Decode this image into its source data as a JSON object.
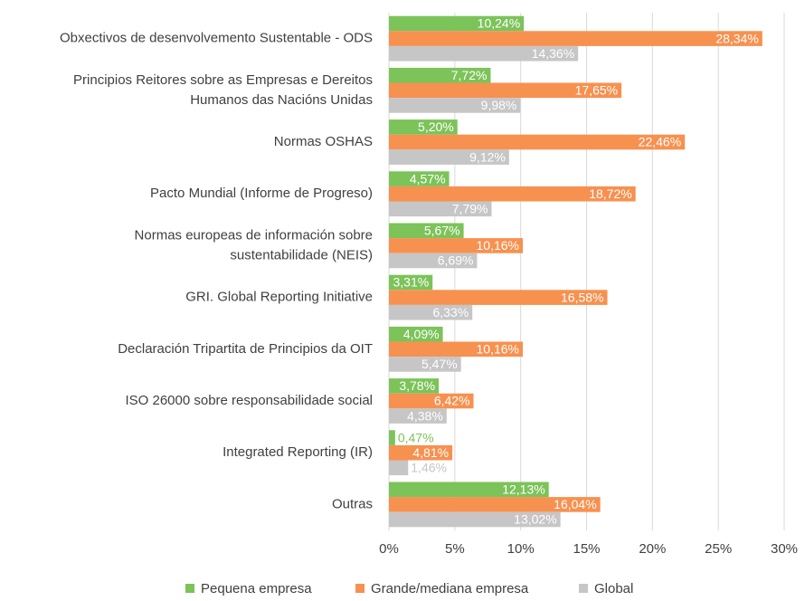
{
  "chart_data": {
    "type": "bar",
    "orientation": "horizontal",
    "categories": [
      "Obxectivos de desenvolvemento Sustentable - ODS",
      "Principios Reitores sobre as Empresas e Dereitos\nHumanos das Nacións Unidas",
      "Normas OSHAS",
      "Pacto Mundial (Informe de Progreso)",
      "Normas europeas de información sobre\nsustentabilidade (NEIS)",
      "GRI. Global Reporting Initiative",
      "Declaración Tripartita de Principios da OIT",
      "ISO 26000 sobre responsabilidade social",
      "Integrated Reporting (IR)",
      "Outras"
    ],
    "series": [
      {
        "name": "Pequena empresa",
        "color": "#7cc35a",
        "values": [
          10.24,
          7.72,
          5.2,
          4.57,
          5.67,
          3.31,
          4.09,
          3.78,
          0.47,
          12.13
        ],
        "value_labels": [
          "10,24%",
          "7,72%",
          "5,20%",
          "4,57%",
          "5,67%",
          "3,31%",
          "4,09%",
          "3,78%",
          "0,47%",
          "12,13%"
        ]
      },
      {
        "name": "Grande/mediana empresa",
        "color": "#f79150",
        "values": [
          28.34,
          17.65,
          22.46,
          18.72,
          10.16,
          16.58,
          10.16,
          6.42,
          4.81,
          16.04
        ],
        "value_labels": [
          "28,34%",
          "17,65%",
          "22,46%",
          "18,72%",
          "10,16%",
          "16,58%",
          "10,16%",
          "6,42%",
          "4,81%",
          "16,04%"
        ]
      },
      {
        "name": "Global",
        "color": "#c6c6c6",
        "values": [
          14.36,
          9.98,
          9.12,
          7.79,
          6.69,
          6.33,
          5.47,
          4.38,
          1.46,
          13.02
        ],
        "value_labels": [
          "14,36%",
          "9,98%",
          "9,12%",
          "7,79%",
          "6,69%",
          "6,33%",
          "5,47%",
          "4,38%",
          "1,46%",
          "13,02%"
        ]
      }
    ],
    "xlim": [
      0,
      30
    ],
    "xticks": [
      {
        "value": 0,
        "label": "0%"
      },
      {
        "value": 5,
        "label": "5%"
      },
      {
        "value": 10,
        "label": "10%"
      },
      {
        "value": 15,
        "label": "15%"
      },
      {
        "value": 20,
        "label": "20%"
      },
      {
        "value": 25,
        "label": "25%"
      },
      {
        "value": 30,
        "label": "30%"
      }
    ],
    "grid": true,
    "legend": "bottom"
  }
}
